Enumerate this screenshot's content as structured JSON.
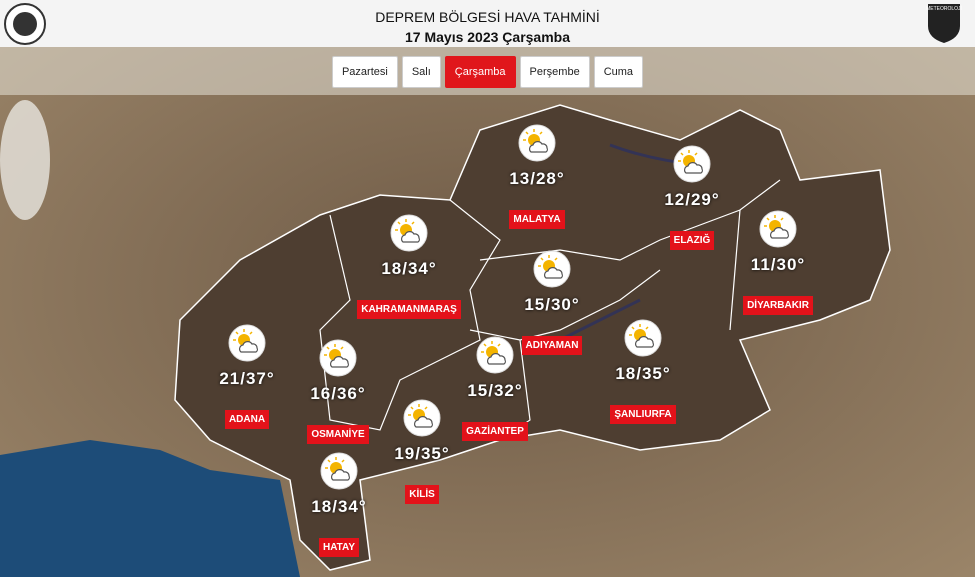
{
  "header": {
    "title": "DEPREM BÖLGESİ HAVA TAHMİNİ",
    "date": "17 Mayıs 2023 Çarşamba",
    "left_logo": "",
    "right_logo": "METEOROLOJİ"
  },
  "days": [
    "Pazartesi",
    "Salı",
    "Çarşamba",
    "Perşembe",
    "Cuma"
  ],
  "active_day": 2,
  "cities": [
    {
      "name": "MALATYA",
      "temp": "13/28°"
    },
    {
      "name": "ELAZIĞ",
      "temp": "12/29°"
    },
    {
      "name": "DİYARBAKIR",
      "temp": "11/30°"
    },
    {
      "name": "KAHRAMANMARAŞ",
      "temp": "18/34°"
    },
    {
      "name": "ADIYAMAN",
      "temp": "15/30°"
    },
    {
      "name": "ADANA",
      "temp": "21/37°"
    },
    {
      "name": "OSMANİYE",
      "temp": "16/36°"
    },
    {
      "name": "GAZİANTEP",
      "temp": "15/32°"
    },
    {
      "name": "ŞANLIURFA",
      "temp": "18/35°"
    },
    {
      "name": "KİLİS",
      "temp": "19/35°"
    },
    {
      "name": "HATAY",
      "temp": "18/34°"
    }
  ]
}
